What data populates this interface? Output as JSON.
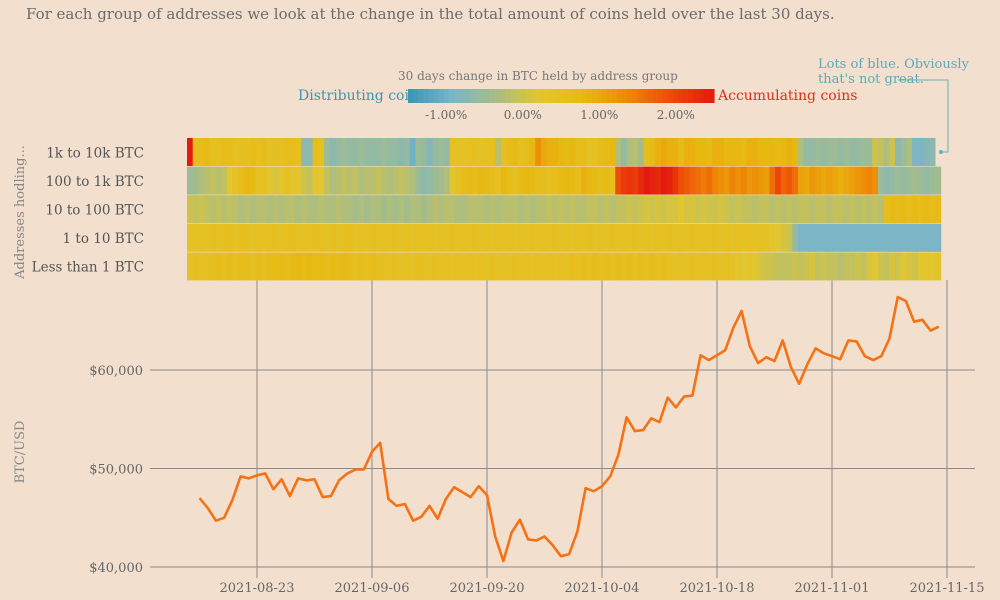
{
  "subtitle": "For each group of addresses we look at the change in the total amount of coins held over the last 30 days.",
  "legend": {
    "title": "30 days change in BTC held by address group",
    "left_label": "Distributing coins",
    "right_label": "Accumulating coins",
    "ticks": [
      "-1.00%",
      "0.00%",
      "1.00%",
      "2.00%"
    ],
    "tick_values": [
      -1.0,
      0.0,
      1.0,
      2.0
    ],
    "range": [
      -1.5,
      2.5
    ]
  },
  "annotation": "Lots of blue. Obviously that's not great.",
  "colors": {
    "background": "#f2dfce",
    "line": "#f47216",
    "grid": "#8a8a8a",
    "scale": [
      "#3a95b3",
      "#79b5c9",
      "#a8bd86",
      "#e2c62e",
      "#e8b912",
      "#ee8a06",
      "#ee4a08",
      "#e21a0f"
    ]
  },
  "chart_data": [
    {
      "type": "heatmap",
      "ylabel": "Addresses hodling...",
      "rows": [
        "1k to 10k BTC",
        "100 to 1k BTC",
        "10 to 100 BTC",
        "1 to 10 BTC",
        "Less than 1 BTC"
      ],
      "start_date": "2021-08-14",
      "end_date": "2021-11-12",
      "values_pct": [
        [
          2.5,
          0.6,
          0.6,
          0.7,
          0.5,
          0.5,
          0.6,
          0.6,
          0.5,
          0.5,
          0.5,
          0.6,
          0.5,
          0.6,
          0.4,
          0.5,
          0.5,
          0.6,
          0.6,
          0.5,
          -0.7,
          -0.7,
          0.6,
          0.5,
          -0.5,
          -0.7,
          -0.6,
          -0.5,
          -0.6,
          -0.6,
          -0.5,
          -0.6,
          -0.6,
          -0.6,
          -0.5,
          -0.6,
          -0.6,
          -0.7,
          -0.6,
          -1.0,
          -0.5,
          -0.6,
          -0.8,
          -0.6,
          -0.5,
          -0.6,
          0.5,
          0.4,
          0.4,
          0.5,
          0.5,
          0.4,
          0.5,
          0.5,
          -0.2,
          0.5,
          0.6,
          0.7,
          0.5,
          0.6,
          0.8,
          1.3,
          1.0,
          0.9,
          0.9,
          0.8,
          0.7,
          0.8,
          0.6,
          0.6,
          0.4,
          0.5,
          0.6,
          0.7,
          0.8,
          -0.3,
          -0.6,
          -0.3,
          -0.2,
          -0.4,
          0.6,
          0.7,
          0.9,
          1.0,
          0.9,
          0.9,
          0.7,
          0.9,
          0.9,
          0.8,
          0.8,
          0.7,
          0.9,
          0.9,
          0.8,
          0.8,
          0.8,
          0.7,
          0.9,
          0.9,
          0.8,
          0.8,
          0.8,
          0.7,
          0.8,
          0.9,
          0.8,
          -0.3,
          -0.6,
          -0.6,
          -0.5,
          -0.6,
          -0.5,
          -0.5,
          -0.6,
          -0.5,
          -0.6,
          -0.6,
          -0.5,
          -0.5,
          0.0,
          -0.1,
          -0.3,
          0.0,
          -0.7,
          -0.5,
          -0.3,
          -0.9,
          -0.9,
          -0.8,
          -0.7
        ],
        [
          -0.5,
          -0.4,
          -0.3,
          -0.2,
          -0.1,
          -0.2,
          -0.1,
          0.2,
          0.4,
          0.6,
          0.8,
          0.7,
          0.5,
          0.4,
          0.2,
          0.1,
          0.2,
          0.5,
          0.3,
          0.2,
          0.0,
          -0.1,
          0.3,
          0.2,
          -0.1,
          -0.3,
          -0.2,
          -0.1,
          -0.2,
          -0.1,
          -0.3,
          -0.2,
          -0.2,
          -0.1,
          -0.2,
          -0.3,
          -0.2,
          -0.1,
          -0.2,
          -0.3,
          -0.5,
          -0.7,
          -0.6,
          -0.5,
          -0.4,
          -0.3,
          0.2,
          0.5,
          0.6,
          0.7,
          0.6,
          0.8,
          0.7,
          0.6,
          0.5,
          0.8,
          0.6,
          0.5,
          0.7,
          0.8,
          0.7,
          0.6,
          0.6,
          0.5,
          0.6,
          0.7,
          0.8,
          0.7,
          0.6,
          0.9,
          0.8,
          0.7,
          0.6,
          0.7,
          0.6,
          1.9,
          2.1,
          2.2,
          2.1,
          2.3,
          2.5,
          2.4,
          2.3,
          2.5,
          2.4,
          2.2,
          1.9,
          1.8,
          1.7,
          1.6,
          1.5,
          1.6,
          1.4,
          1.3,
          1.2,
          1.4,
          1.3,
          1.4,
          1.2,
          1.3,
          1.2,
          1.1,
          1.6,
          2.0,
          1.7,
          1.8,
          1.6,
          1.1,
          1.0,
          1.2,
          1.1,
          1.0,
          1.1,
          1.0,
          0.9,
          1.0,
          1.1,
          1.2,
          1.3,
          1.4,
          1.3,
          -0.5,
          -0.7,
          -0.6,
          -0.5,
          -0.6,
          -0.5,
          -0.4,
          -0.5,
          -0.6,
          -0.5,
          -0.4
        ],
        [
          0.0,
          -0.1,
          0.0,
          -0.1,
          -0.2,
          -0.1,
          -0.2,
          -0.1,
          -0.2,
          -0.3,
          -0.2,
          -0.3,
          -0.2,
          -0.2,
          -0.3,
          -0.2,
          -0.3,
          -0.2,
          -0.2,
          -0.3,
          -0.2,
          -0.3,
          -0.3,
          -0.2,
          -0.3,
          -0.3,
          -0.2,
          -0.3,
          -0.3,
          -0.4,
          -0.3,
          -0.4,
          -0.3,
          -0.3,
          -0.4,
          -0.3,
          -0.4,
          -0.3,
          -0.4,
          -0.3,
          -0.3,
          -0.4,
          -0.3,
          -0.2,
          -0.3,
          -0.2,
          -0.2,
          -0.3,
          -0.3,
          -0.2,
          -0.2,
          -0.2,
          -0.3,
          -0.2,
          -0.3,
          -0.2,
          -0.2,
          -0.2,
          -0.3,
          -0.2,
          -0.3,
          -0.2,
          -0.2,
          -0.1,
          -0.2,
          -0.1,
          -0.2,
          -0.1,
          -0.2,
          -0.2,
          -0.1,
          -0.1,
          -0.2,
          -0.1,
          -0.2,
          -0.1,
          -0.1,
          0.0,
          -0.1,
          0.0,
          0.1,
          0.0,
          0.1,
          0.0,
          0.1,
          0.1,
          0.2,
          0.1,
          0.1,
          0.0,
          0.1,
          0.0,
          0.0,
          0.1,
          0.0,
          -0.1,
          0.0,
          -0.1,
          -0.1,
          -0.2,
          -0.1,
          -0.1,
          -0.2,
          -0.1,
          -0.2,
          -0.1,
          -0.2,
          -0.1,
          -0.1,
          -0.2,
          -0.1,
          -0.1,
          -0.2,
          -0.1,
          -0.1,
          -0.2,
          -0.1,
          -0.2,
          -0.1,
          -0.2,
          -0.1,
          -0.2,
          0.6,
          0.7,
          0.6,
          0.7,
          0.6,
          0.7,
          0.6,
          0.7,
          0.6,
          0.7
        ],
        [
          0.4,
          0.4,
          0.5,
          0.4,
          0.5,
          0.4,
          0.5,
          0.5,
          0.4,
          0.5,
          0.5,
          0.4,
          0.5,
          0.4,
          0.5,
          0.5,
          0.4,
          0.5,
          0.5,
          0.4,
          0.5,
          0.4,
          0.5,
          0.5,
          0.4,
          0.5,
          0.4,
          0.5,
          0.5,
          0.4,
          0.5,
          0.4,
          0.5,
          0.4,
          0.5,
          0.4,
          0.5,
          0.4,
          0.5,
          0.4,
          0.5,
          0.4,
          0.5,
          0.4,
          0.5,
          0.4,
          0.5,
          0.4,
          0.5,
          0.4,
          0.5,
          0.4,
          0.5,
          0.4,
          0.5,
          0.4,
          0.5,
          0.4,
          0.5,
          0.4,
          0.5,
          0.4,
          0.5,
          0.4,
          0.5,
          0.4,
          0.5,
          0.4,
          0.5,
          0.4,
          0.5,
          0.4,
          0.5,
          0.4,
          0.5,
          0.4,
          0.5,
          0.4,
          0.5,
          0.4,
          0.5,
          0.4,
          0.5,
          0.4,
          0.5,
          0.4,
          0.5,
          0.4,
          0.5,
          0.4,
          0.5,
          0.4,
          0.5,
          0.4,
          0.5,
          0.4,
          0.5,
          0.4,
          0.5,
          0.4,
          0.5,
          0.4,
          0.3,
          0.2,
          0.1,
          0.0,
          -0.6,
          -0.9,
          -0.9,
          -0.9,
          -0.9,
          -0.9,
          -0.9,
          -0.9,
          -0.9,
          -0.9,
          -0.9,
          -0.9,
          -0.9,
          -0.9,
          -0.9,
          -0.9,
          -0.9,
          -0.9,
          -0.9,
          -0.9,
          -0.9,
          -0.9,
          -0.9,
          -0.9,
          -0.9,
          -0.9
        ],
        [
          0.4,
          0.5,
          0.4,
          0.5,
          0.5,
          0.6,
          0.5,
          0.6,
          0.5,
          0.6,
          0.6,
          0.5,
          0.6,
          0.5,
          0.6,
          0.7,
          0.7,
          0.6,
          0.7,
          0.8,
          0.7,
          0.8,
          0.7,
          0.7,
          0.6,
          0.7,
          0.6,
          0.7,
          0.6,
          0.5,
          0.6,
          0.5,
          0.6,
          0.5,
          0.5,
          0.4,
          0.5,
          0.4,
          0.5,
          0.4,
          0.5,
          0.5,
          0.4,
          0.5,
          0.4,
          0.5,
          0.4,
          0.5,
          0.4,
          0.5,
          0.4,
          0.5,
          0.4,
          0.5,
          0.4,
          0.5,
          0.4,
          0.5,
          0.4,
          0.5,
          0.4,
          0.5,
          0.4,
          0.5,
          0.4,
          0.5,
          0.4,
          0.6,
          0.5,
          0.6,
          0.5,
          0.6,
          0.5,
          0.6,
          0.5,
          0.6,
          0.5,
          0.6,
          0.5,
          0.6,
          0.5,
          0.6,
          0.5,
          0.6,
          0.5,
          0.4,
          0.5,
          0.4,
          0.5,
          0.4,
          0.5,
          0.4,
          0.5,
          0.4,
          0.5,
          0.4,
          0.3,
          0.2,
          0.3,
          0.2,
          0.1,
          0.0,
          0.0,
          -0.1,
          -0.1,
          -0.1,
          0.0,
          -0.1,
          0.0,
          0.1,
          -0.1,
          0.0,
          -0.1,
          -0.1,
          -0.2,
          -0.1,
          -0.1,
          0.0,
          -0.1,
          0.1,
          0.2,
          0.0,
          -0.1,
          0.1,
          0.0,
          0.2,
          0.1,
          0.0,
          0.2,
          0.3,
          0.2,
          0.3
        ]
      ]
    },
    {
      "type": "line",
      "ylabel": "BTC/USD",
      "xlabel": "",
      "x_ticks": [
        "2021-08-23",
        "2021-09-06",
        "2021-09-20",
        "2021-10-04",
        "2021-10-18",
        "2021-11-01",
        "2021-11-15"
      ],
      "y_ticks": [
        "$40,000",
        "$50,000",
        "$60,000"
      ],
      "y_tick_values": [
        40000,
        50000,
        60000
      ],
      "ylim": [
        40000,
        68000
      ],
      "xlim": [
        "2021-08-14",
        "2021-11-17"
      ],
      "start_date": "2021-08-16",
      "values": [
        47000,
        46000,
        44700,
        45000,
        46800,
        49200,
        49000,
        49300,
        49500,
        47900,
        48900,
        47200,
        49000,
        48800,
        48900,
        47100,
        47200,
        48800,
        49500,
        49900,
        49900,
        51700,
        52600,
        46900,
        46200,
        46400,
        44700,
        45100,
        46200,
        44900,
        46900,
        48100,
        47600,
        47100,
        48200,
        47300,
        43100,
        40600,
        43500,
        44800,
        42800,
        42700,
        43100,
        42200,
        41100,
        41300,
        43600,
        48000,
        47700,
        48200,
        49200,
        51400,
        55200,
        53800,
        53900,
        55100,
        54700,
        57200,
        56200,
        57300,
        57400,
        61500,
        61000,
        61500,
        62000,
        64300,
        66000,
        62400,
        60700,
        61300,
        60900,
        63000,
        60300,
        58600,
        60600,
        62200,
        61700,
        61400,
        61100,
        63000,
        62900,
        61400,
        61000,
        61400,
        63200,
        67400,
        67000,
        64900,
        65100,
        64000,
        64400
      ]
    }
  ]
}
